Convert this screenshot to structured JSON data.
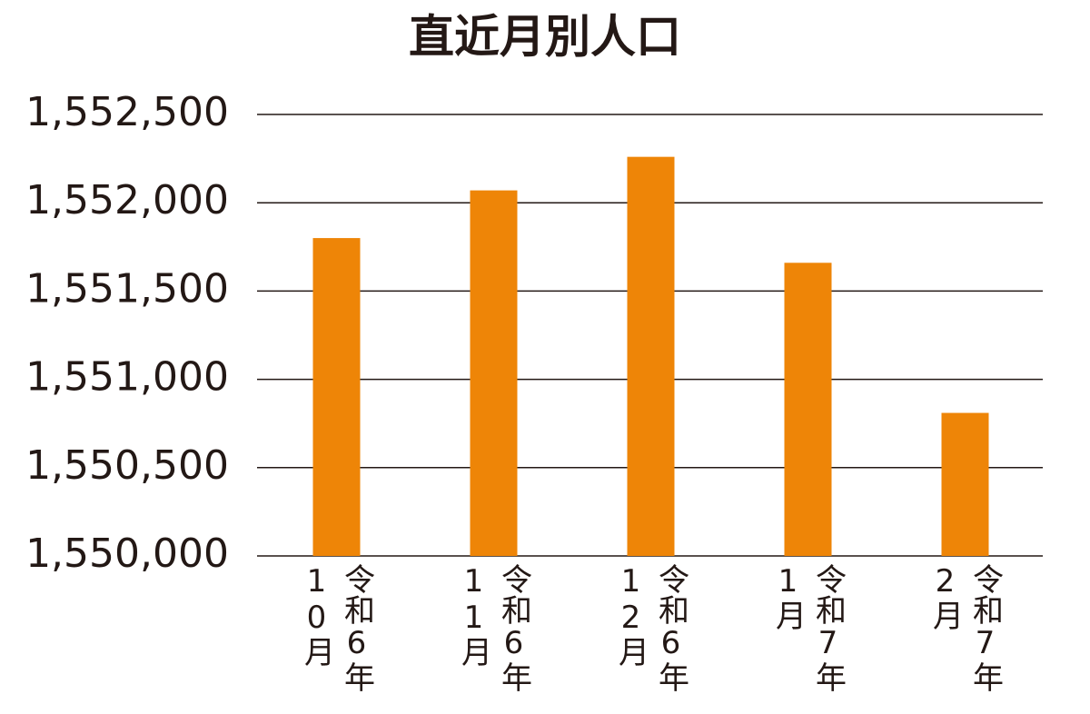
{
  "chart_data": {
    "type": "bar",
    "title": "直近月別人口",
    "categories": [
      "令和6年10月",
      "令和6年11月",
      "令和6年12月",
      "令和7年1月",
      "令和7年2月"
    ],
    "values": [
      1551800,
      1552070,
      1552260,
      1551660,
      1550810
    ],
    "color": "#ee8507",
    "ylim": [
      1550000,
      1552500
    ],
    "yticks": [
      {
        "value": 1550000,
        "label": "1,550,000"
      },
      {
        "value": 1550500,
        "label": "1,550,500"
      },
      {
        "value": 1551000,
        "label": "1,551,000"
      },
      {
        "value": 1551500,
        "label": "1,551,500"
      },
      {
        "value": 1552000,
        "label": "1,552,000"
      },
      {
        "value": 1552500,
        "label": "1,552,500"
      }
    ],
    "grid": true
  }
}
